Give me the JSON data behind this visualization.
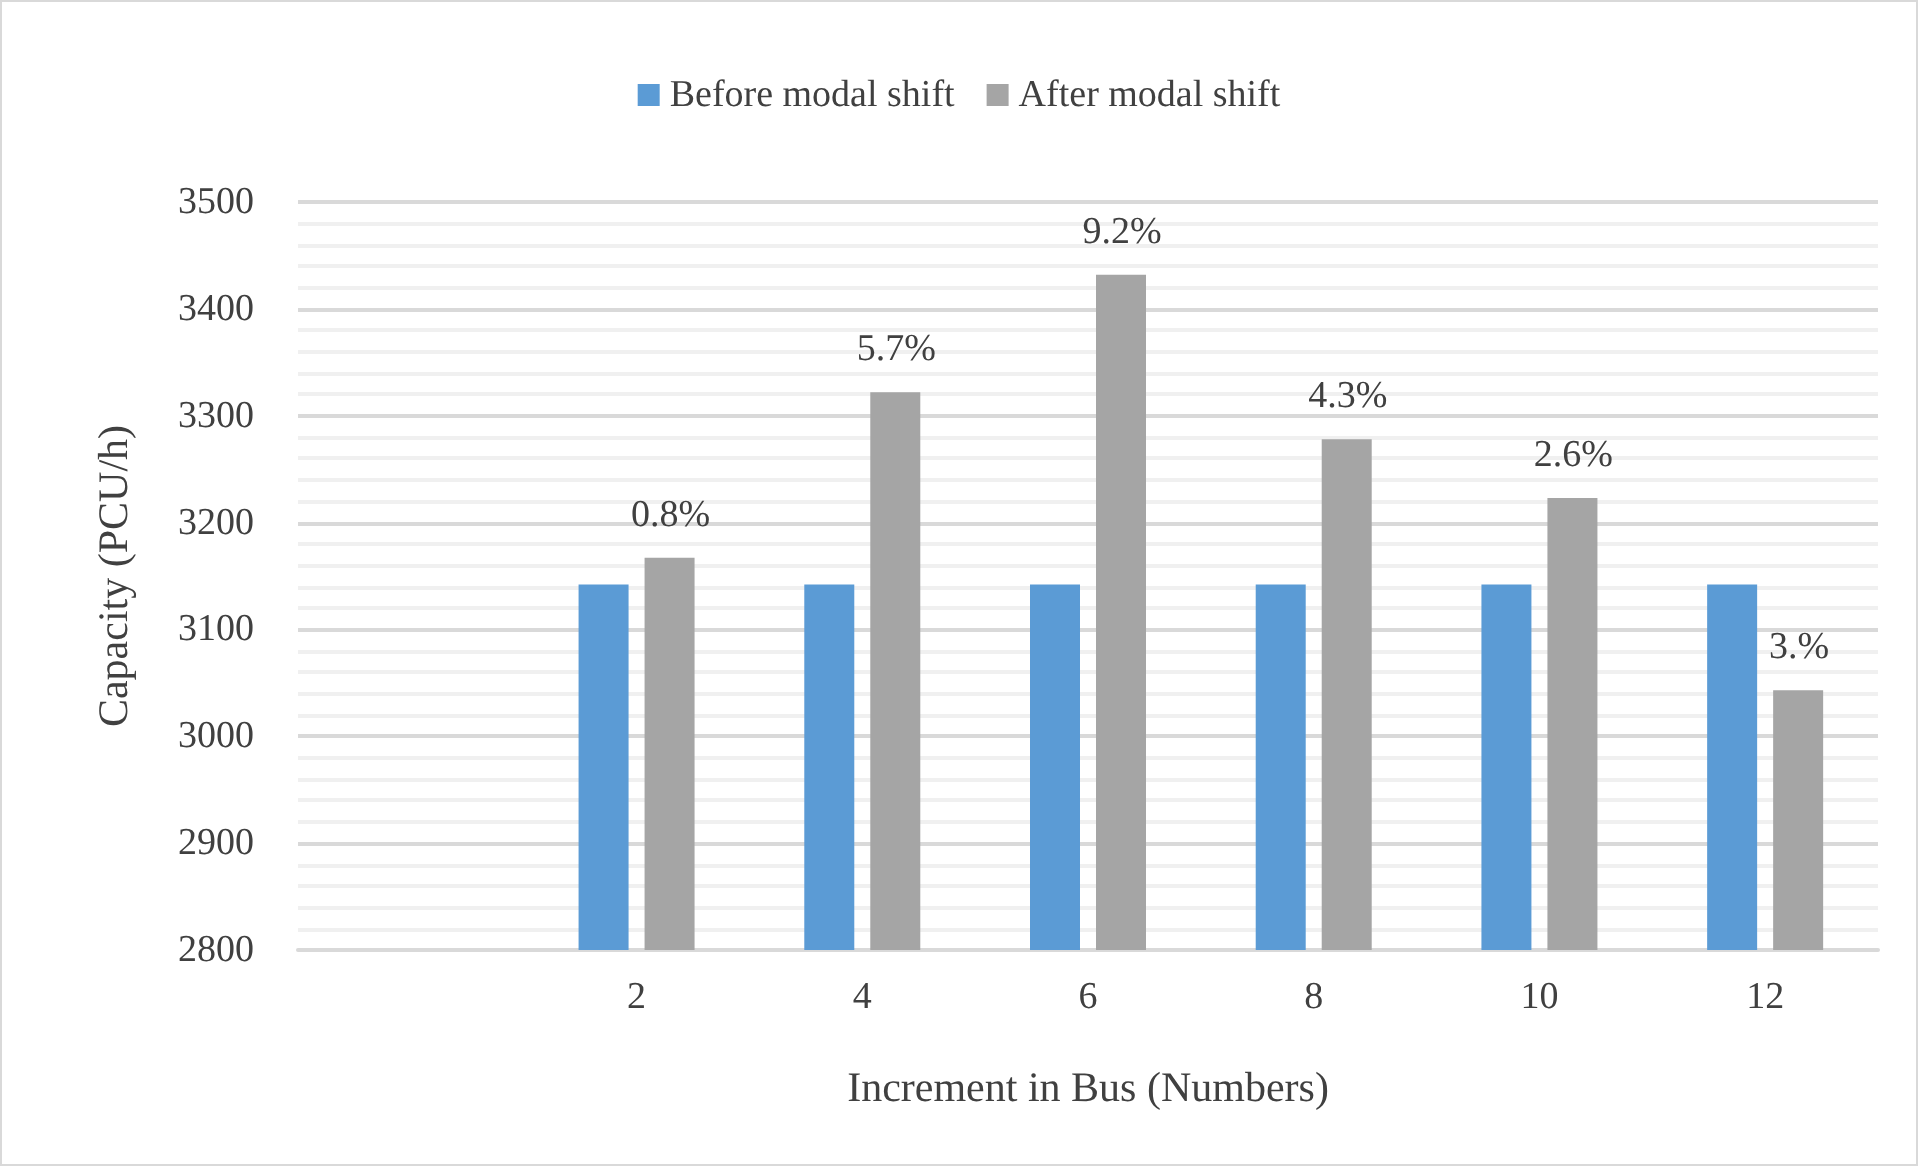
{
  "chart_data": {
    "type": "bar",
    "xlabel": "Increment in Bus (Numbers)",
    "ylabel": "Capacity (PCU/h)",
    "categories": [
      null,
      "2",
      "4",
      "6",
      "8",
      "10",
      "12"
    ],
    "series": [
      {
        "name": "Before modal shift",
        "color": "#5b9bd5",
        "values": [
          null,
          3142,
          3142,
          3142,
          3142,
          3142,
          3142
        ]
      },
      {
        "name": "After modal shift",
        "color": "#a5a5a5",
        "values": [
          null,
          3167,
          3322,
          3432,
          3278,
          3223,
          3043
        ]
      }
    ],
    "annotations": [
      {
        "text": "0.8%",
        "x": "2",
        "y": 3167
      },
      {
        "text": "5.7%",
        "x": "4",
        "y": 3322
      },
      {
        "text": "9.2%",
        "x": "6",
        "y": 3432
      },
      {
        "text": "4.3%",
        "x": "8",
        "y": 3278
      },
      {
        "text": "2.6%",
        "x": "10",
        "y": 3223
      },
      {
        "text": "3.%",
        "x": "12",
        "y": 3043
      }
    ],
    "ylim": [
      2800,
      3500
    ],
    "yticks": [
      2800,
      2900,
      3000,
      3100,
      3200,
      3300,
      3400,
      3500
    ],
    "grid": "y",
    "legend": "top"
  }
}
